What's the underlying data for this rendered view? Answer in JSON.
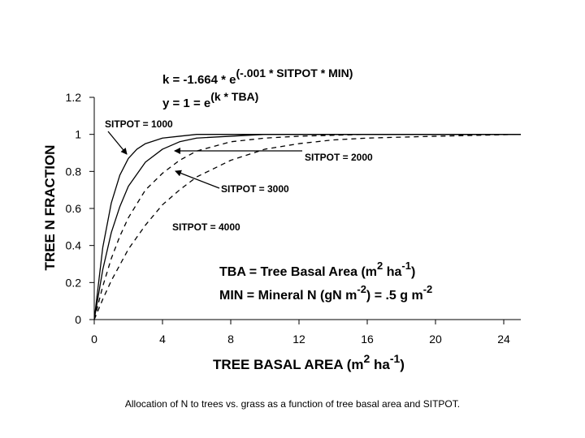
{
  "chart_data": {
    "type": "line",
    "xlabel": "TREE BASAL AREA (m² ha⁻¹)",
    "ylabel": "TREE N FRACTION",
    "xlim": [
      0,
      25
    ],
    "ylim": [
      0,
      1.2
    ],
    "x_ticks": [
      "0",
      "4",
      "8",
      "12",
      "16",
      "20",
      "24"
    ],
    "y_ticks": [
      "0",
      "0.2",
      "0.4",
      "0.6",
      "0.8",
      "1",
      "1.2"
    ],
    "grid": false,
    "legend": "none",
    "series": [
      {
        "name": "SITPOT = 1000",
        "style": "solid",
        "x": [
          0,
          0.5,
          1,
          1.5,
          2,
          2.5,
          3,
          4,
          5,
          6,
          8,
          12,
          16,
          20,
          25
        ],
        "y": [
          0,
          0.39,
          0.63,
          0.78,
          0.87,
          0.92,
          0.95,
          0.98,
          0.99,
          1.0,
          1.0,
          1.0,
          1.0,
          1.0,
          1.0
        ]
      },
      {
        "name": "SITPOT = 2000",
        "style": "solid",
        "x": [
          0,
          0.5,
          1,
          1.5,
          2,
          3,
          4,
          5,
          6,
          8,
          10,
          12,
          16,
          20,
          25
        ],
        "y": [
          0,
          0.27,
          0.47,
          0.61,
          0.72,
          0.85,
          0.92,
          0.96,
          0.98,
          0.99,
          1.0,
          1.0,
          1.0,
          1.0,
          1.0
        ]
      },
      {
        "name": "SITPOT = 3000",
        "style": "dashed",
        "x": [
          0,
          0.5,
          1,
          1.5,
          2,
          3,
          4,
          5,
          6,
          8,
          10,
          12,
          16,
          20,
          25
        ],
        "y": [
          0,
          0.18,
          0.33,
          0.45,
          0.55,
          0.7,
          0.79,
          0.86,
          0.91,
          0.96,
          0.98,
          0.99,
          1.0,
          1.0,
          1.0
        ]
      },
      {
        "name": "SITPOT = 4000",
        "style": "dashed",
        "x": [
          0,
          0.5,
          1,
          2,
          3,
          4,
          5,
          6,
          8,
          10,
          12,
          14,
          16,
          20,
          25
        ],
        "y": [
          0,
          0.11,
          0.21,
          0.38,
          0.51,
          0.62,
          0.7,
          0.77,
          0.86,
          0.92,
          0.95,
          0.97,
          0.98,
          0.99,
          1.0
        ]
      }
    ],
    "annotations": [
      {
        "text": "SITPOT = 1000",
        "arrow_to": [
          1.9,
          0.87
        ]
      },
      {
        "text": "SITPOT = 2000",
        "arrow_to": [
          4.7,
          0.92
        ]
      },
      {
        "text": "SITPOT = 3000",
        "arrow_to": [
          4.7,
          0.79
        ]
      },
      {
        "text": "SITPOT = 4000"
      }
    ],
    "equations": {
      "k_base": "k = -1.664 * e",
      "k_exp": "(-.001 * SITPOT * MIN)",
      "y_base": "y = 1 = e",
      "y_exp": "(k * TBA)"
    },
    "notes": {
      "tba_text": "TBA = Tree Basal Area (m",
      "tba_sup1": "2",
      "tba_mid": " ha",
      "tba_sup2": "-1",
      "tba_end": ")",
      "min_text": "MIN = Mineral N (gN m",
      "min_sup1": "-2",
      "min_mid": ") = .5 g m",
      "min_sup2": "-2"
    },
    "xlabel_parts": {
      "base": "TREE BASAL AREA (m",
      "sup1": "2",
      "mid": " ha",
      "sup2": "-1",
      "end": ")"
    }
  },
  "caption": "Allocation of N to trees vs. grass as a function of tree basal area and SITPOT."
}
